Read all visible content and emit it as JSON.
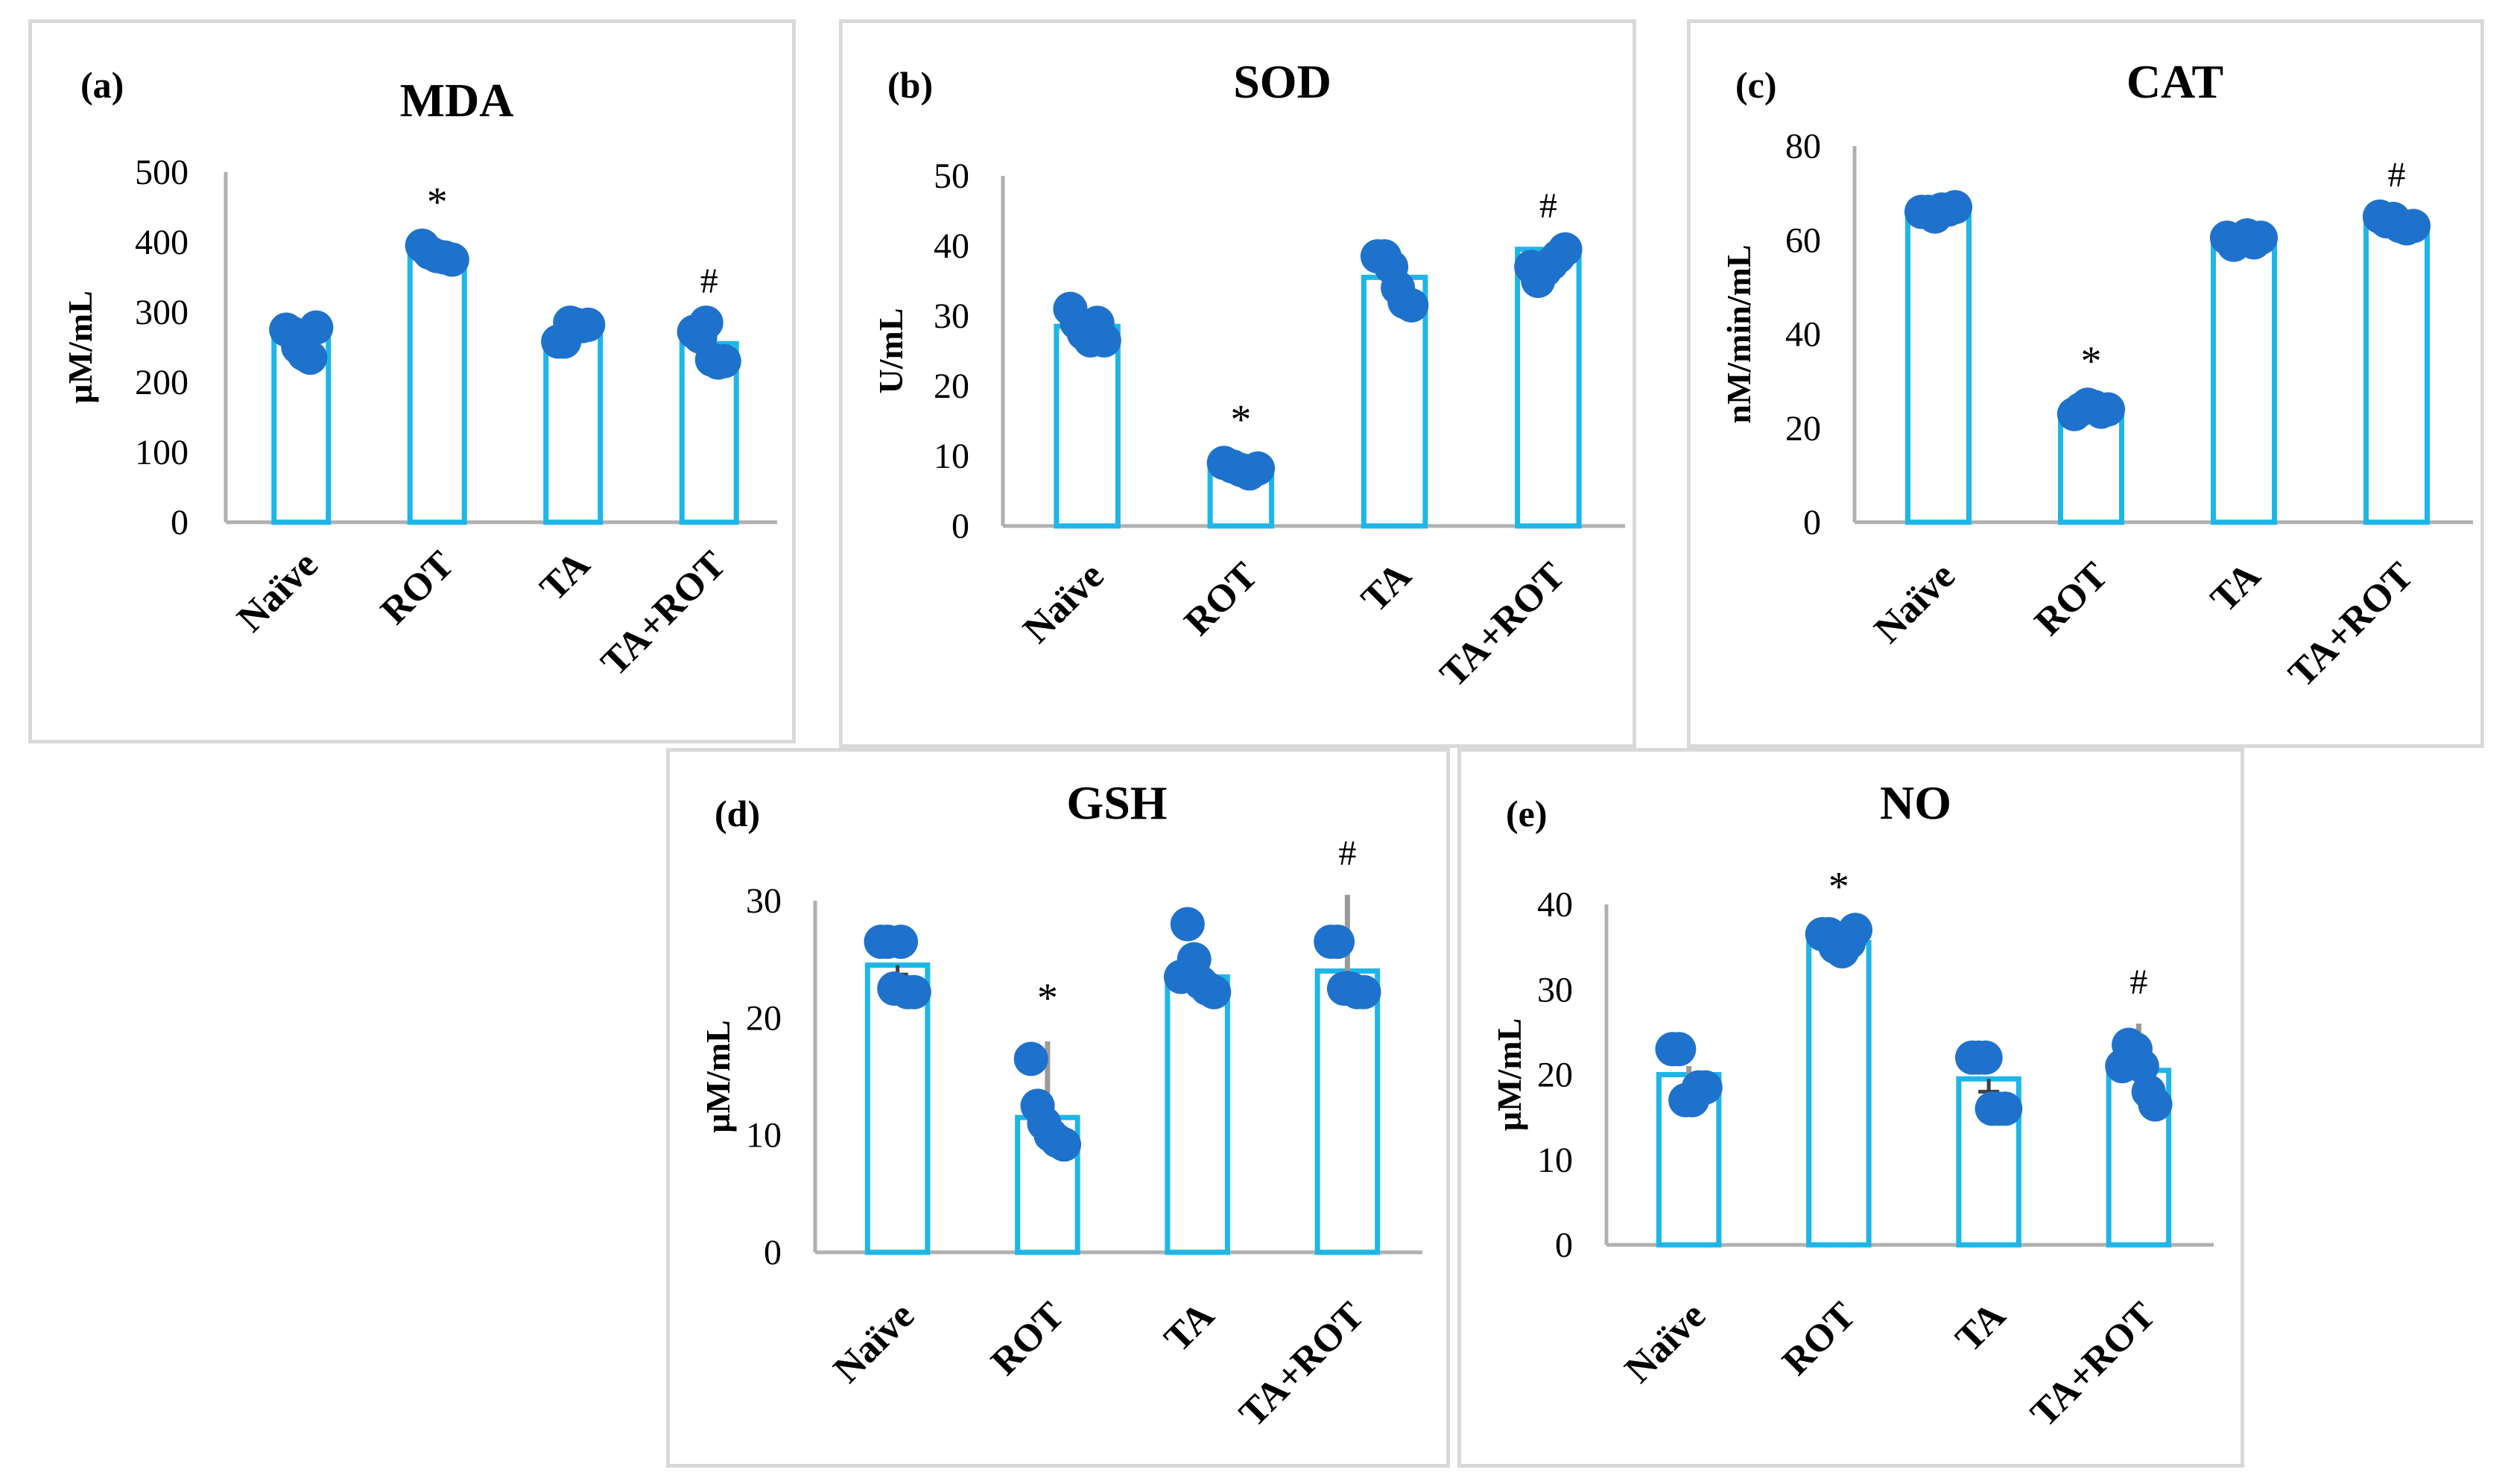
{
  "colors": {
    "bar": "#1eb6e8",
    "dot": "#1e72cc",
    "axis": "#b0b0b0",
    "err_dark": "#404040",
    "err_gray": "#9a9a9a"
  },
  "chart_data": [
    {
      "type": "bar",
      "panel": "(a)",
      "title": "MDA",
      "ylabel": "µM/mL",
      "categories": [
        "Naïve",
        "ROT",
        "TA",
        "TA+ROT"
      ],
      "values": [
        262,
        380,
        265,
        255
      ],
      "ylim": [
        0,
        500
      ],
      "yticks": [
        0,
        100,
        200,
        300,
        400,
        500
      ],
      "points": [
        [
          275,
          270,
          250,
          240,
          235,
          278
        ],
        [
          395,
          385,
          380,
          378,
          375
        ],
        [
          258,
          258,
          285,
          282,
          280,
          282
        ],
        [
          272,
          265,
          285,
          232,
          228,
          230
        ]
      ],
      "error_low": [
        0,
        0,
        0,
        0
      ],
      "error_high": [
        0,
        0,
        0,
        0
      ],
      "annotations": [
        "",
        "*",
        "",
        "#"
      ]
    },
    {
      "type": "bar",
      "panel": "(b)",
      "title": "SOD",
      "ylabel": "U/mL",
      "categories": [
        "Naïve",
        "ROT",
        "TA",
        "TA+ROT"
      ],
      "values": [
        28.5,
        8.2,
        35.5,
        39.5
      ],
      "ylim": [
        0,
        50
      ],
      "yticks": [
        0,
        10,
        20,
        30,
        40,
        50
      ],
      "points": [
        [
          31,
          29,
          27.5,
          26.5,
          29,
          26.5
        ],
        [
          9,
          8.5,
          8,
          7.5,
          8.2
        ],
        [
          38.5,
          38.5,
          37,
          34,
          32,
          31.5
        ],
        [
          37,
          35,
          36.5,
          37.5,
          38.5,
          39.5
        ]
      ],
      "error_low": [
        0,
        0,
        1.2,
        0
      ],
      "error_high": [
        0,
        0,
        0,
        0.3
      ],
      "annotations": [
        "",
        "*",
        "",
        "#"
      ]
    },
    {
      "type": "bar",
      "panel": "(c)",
      "title": "CAT",
      "ylabel": "nM/min/mL",
      "categories": [
        "Naïve",
        "ROT",
        "TA",
        "TA+ROT"
      ],
      "values": [
        66,
        23.5,
        60,
        63.5
      ],
      "ylim": [
        0,
        80
      ],
      "yticks": [
        0,
        20,
        40,
        60,
        80
      ],
      "points": [
        [
          66,
          66,
          65,
          66.5,
          66.5,
          67
        ],
        [
          23,
          24,
          25,
          24.5,
          23.5,
          24
        ],
        [
          60.5,
          59,
          60,
          61,
          59.5,
          60.5
        ],
        [
          65,
          64,
          64.5,
          63,
          62.5,
          63
        ]
      ],
      "error_low": [
        0,
        0,
        0,
        0
      ],
      "error_high": [
        0,
        0,
        0,
        0
      ],
      "annotations": [
        "",
        "*",
        "",
        "#"
      ]
    },
    {
      "type": "bar",
      "panel": "(d)",
      "title": "GSH",
      "ylabel": "µM/mL",
      "categories": [
        "Naïve",
        "ROT",
        "TA",
        "TA+ROT"
      ],
      "values": [
        24.5,
        11.5,
        23.5,
        24
      ],
      "ylim": [
        0,
        30
      ],
      "yticks": [
        0,
        10,
        20,
        30
      ],
      "points": [
        [
          26.5,
          26.5,
          22.5,
          26.5,
          22.2,
          22.2
        ],
        [
          16.5,
          12.5,
          11,
          10,
          9.5,
          9.2
        ],
        [
          23.5,
          28,
          25,
          23,
          22.5,
          22.2
        ],
        [
          26.5,
          26.5,
          22.5,
          22.5,
          22.2,
          22.2
        ]
      ],
      "error_low": [
        0.8,
        0,
        0,
        1.2
      ],
      "error_high": [
        0,
        6.5,
        0,
        6.5
      ],
      "annotations": [
        "",
        "*",
        "",
        "#"
      ]
    },
    {
      "type": "bar",
      "panel": "(e)",
      "title": "NO",
      "ylabel": "µM/mL",
      "categories": [
        "Naïve",
        "ROT",
        "TA",
        "TA+ROT"
      ],
      "values": [
        20,
        35.5,
        19.5,
        20.5
      ],
      "ylim": [
        0,
        40
      ],
      "yticks": [
        0,
        10,
        20,
        30,
        40
      ],
      "points": [
        [
          23,
          23,
          17,
          17,
          18.5,
          18.5
        ],
        [
          36.5,
          36.5,
          35,
          34.5,
          35.5,
          37
        ],
        [
          22,
          22,
          22,
          16,
          16,
          16
        ],
        [
          21,
          23.5,
          23,
          21,
          18,
          16.5
        ]
      ],
      "error_low": [
        0,
        0,
        1.5,
        0
      ],
      "error_high": [
        1,
        0,
        0,
        5.5
      ],
      "annotations": [
        "",
        "*",
        "",
        "#"
      ]
    }
  ]
}
